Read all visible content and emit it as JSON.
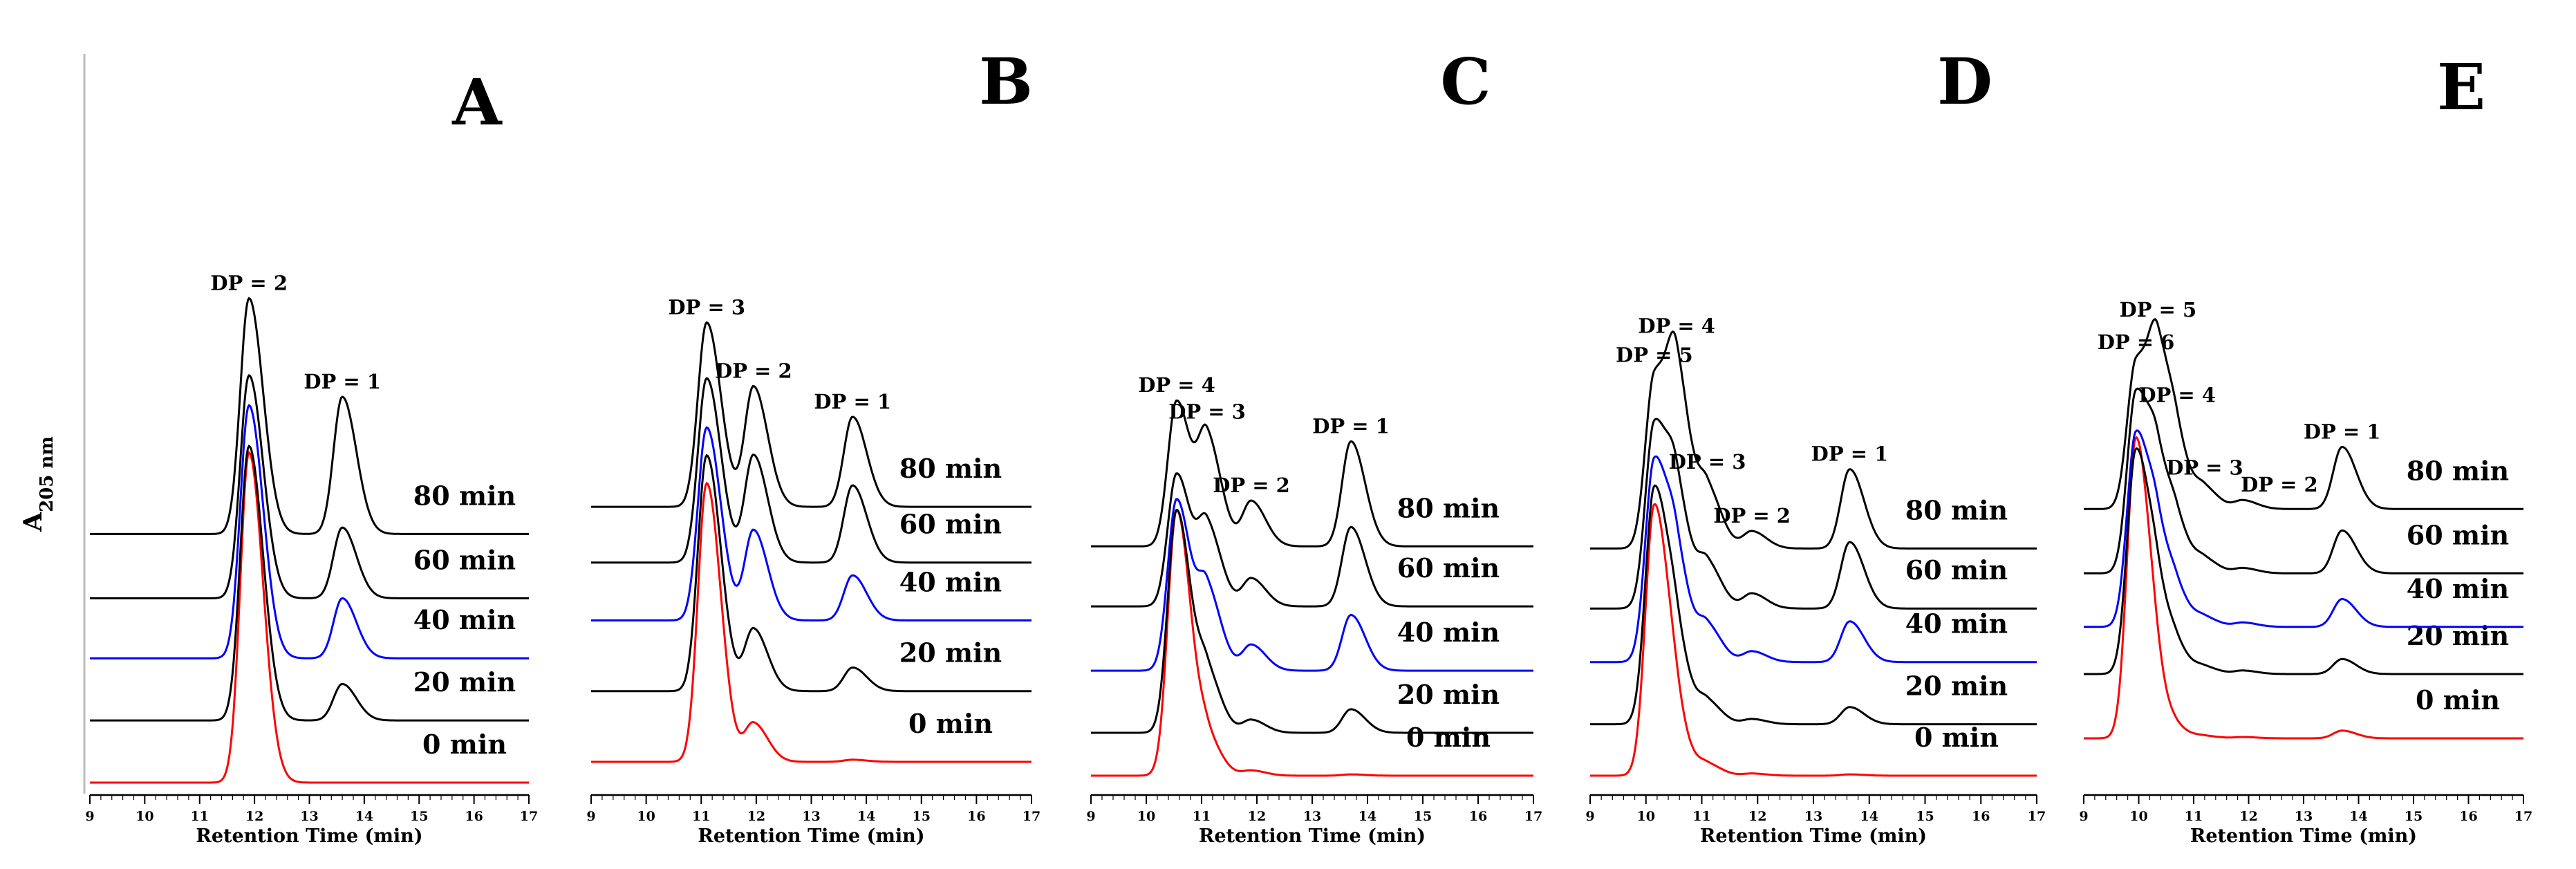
{
  "figure": {
    "ylabel": "A",
    "ylabel_subscript": "205 nm"
  },
  "chart_data": [
    {
      "type": "line",
      "panel": "A",
      "xlabel": "Retention Time (min)",
      "xlim": [
        9,
        17
      ],
      "x_ticks": [
        "9",
        "10",
        "11",
        "12",
        "13",
        "14",
        "15",
        "16",
        "17"
      ],
      "grid": false,
      "series": [
        {
          "name": "0 min",
          "color": "#ff0000",
          "baseline": 0.0,
          "peaks": [
            {
              "dp": 2,
              "t": 11.9,
              "h": 7.7
            },
            {
              "dp": 1,
              "t": 13.6,
              "h": 0.0
            }
          ]
        },
        {
          "name": "20 min",
          "color": "#000000",
          "baseline": 1.45,
          "peaks": [
            {
              "dp": 2,
              "t": 11.9,
              "h": 6.4
            },
            {
              "dp": 1,
              "t": 13.6,
              "h": 0.85
            }
          ]
        },
        {
          "name": "40 min",
          "color": "#0000ff",
          "baseline": 2.9,
          "peaks": [
            {
              "dp": 2,
              "t": 11.9,
              "h": 5.9
            },
            {
              "dp": 1,
              "t": 13.6,
              "h": 1.4
            }
          ]
        },
        {
          "name": "60 min",
          "color": "#000000",
          "baseline": 4.3,
          "peaks": [
            {
              "dp": 2,
              "t": 11.9,
              "h": 5.2
            },
            {
              "dp": 1,
              "t": 13.6,
              "h": 1.65
            }
          ]
        },
        {
          "name": "80 min",
          "color": "#000000",
          "baseline": 5.8,
          "peaks": [
            {
              "dp": 2,
              "t": 11.9,
              "h": 5.5
            },
            {
              "dp": 1,
              "t": 13.6,
              "h": 3.2
            }
          ]
        }
      ],
      "annotations": [
        {
          "text": "DP = 2",
          "series": "80 min",
          "peak": 0
        },
        {
          "text": "DP = 1",
          "series": "80 min",
          "peak": 1
        }
      ]
    },
    {
      "type": "line",
      "panel": "B",
      "xlabel": "Retention Time (min)",
      "xlim": [
        9,
        17
      ],
      "x_ticks": [
        "9",
        "10",
        "11",
        "12",
        "13",
        "14",
        "15",
        "16",
        "17"
      ],
      "grid": false,
      "series": [
        {
          "name": "0 min",
          "color": "#ff0000",
          "baseline": 0.0,
          "peaks": [
            {
              "dp": 3,
              "t": 11.1,
              "h": 6.5
            },
            {
              "dp": 2,
              "t": 11.95,
              "h": 0.9
            },
            {
              "dp": 1,
              "t": 13.75,
              "h": 0.05
            }
          ]
        },
        {
          "name": "20 min",
          "color": "#000000",
          "baseline": 1.65,
          "peaks": [
            {
              "dp": 3,
              "t": 11.1,
              "h": 5.5
            },
            {
              "dp": 2,
              "t": 11.95,
              "h": 1.45
            },
            {
              "dp": 1,
              "t": 13.75,
              "h": 0.55
            }
          ]
        },
        {
          "name": "40 min",
          "color": "#0000ff",
          "baseline": 3.3,
          "peaks": [
            {
              "dp": 3,
              "t": 11.1,
              "h": 4.5
            },
            {
              "dp": 2,
              "t": 11.95,
              "h": 2.1
            },
            {
              "dp": 1,
              "t": 13.75,
              "h": 1.05
            }
          ]
        },
        {
          "name": "60 min",
          "color": "#000000",
          "baseline": 4.65,
          "peaks": [
            {
              "dp": 3,
              "t": 11.1,
              "h": 4.3
            },
            {
              "dp": 2,
              "t": 11.95,
              "h": 2.5
            },
            {
              "dp": 1,
              "t": 13.75,
              "h": 1.8
            }
          ]
        },
        {
          "name": "80 min",
          "color": "#000000",
          "baseline": 5.95,
          "peaks": [
            {
              "dp": 3,
              "t": 11.1,
              "h": 4.3
            },
            {
              "dp": 2,
              "t": 11.95,
              "h": 2.8
            },
            {
              "dp": 1,
              "t": 13.75,
              "h": 2.1
            }
          ]
        }
      ],
      "annotations": [
        {
          "text": "DP = 3",
          "series": "80 min",
          "peak": 0
        },
        {
          "text": "DP = 2",
          "series": "80 min",
          "peak": 1
        },
        {
          "text": "DP = 1",
          "series": "80 min",
          "peak": 2
        }
      ]
    },
    {
      "type": "line",
      "panel": "C",
      "xlabel": "Retention Time (min)",
      "xlim": [
        9,
        17
      ],
      "x_ticks": [
        "9",
        "10",
        "11",
        "12",
        "13",
        "14",
        "15",
        "16",
        "17"
      ],
      "grid": false,
      "series": [
        {
          "name": "0 min",
          "color": "#ff0000",
          "baseline": 0.0,
          "peaks": [
            {
              "dp": 4,
              "t": 10.55,
              "h": 6.2
            },
            {
              "dp": 3,
              "t": 11.1,
              "h": 0.8
            },
            {
              "dp": 2,
              "t": 11.9,
              "h": 0.12
            },
            {
              "dp": 1,
              "t": 13.7,
              "h": 0.03
            }
          ]
        },
        {
          "name": "20 min",
          "color": "#000000",
          "baseline": 1.0,
          "peaks": [
            {
              "dp": 4,
              "t": 10.55,
              "h": 5.2
            },
            {
              "dp": 3,
              "t": 11.1,
              "h": 1.3
            },
            {
              "dp": 2,
              "t": 11.9,
              "h": 0.3
            },
            {
              "dp": 1,
              "t": 13.7,
              "h": 0.55
            }
          ]
        },
        {
          "name": "40 min",
          "color": "#0000ff",
          "baseline": 2.45,
          "peaks": [
            {
              "dp": 4,
              "t": 10.55,
              "h": 4.0
            },
            {
              "dp": 3,
              "t": 11.1,
              "h": 1.8
            },
            {
              "dp": 2,
              "t": 11.9,
              "h": 0.6
            },
            {
              "dp": 1,
              "t": 13.7,
              "h": 1.3
            }
          ]
        },
        {
          "name": "60 min",
          "color": "#000000",
          "baseline": 3.95,
          "peaks": [
            {
              "dp": 4,
              "t": 10.55,
              "h": 3.1
            },
            {
              "dp": 3,
              "t": 11.1,
              "h": 1.8
            },
            {
              "dp": 2,
              "t": 11.9,
              "h": 0.65
            },
            {
              "dp": 1,
              "t": 13.7,
              "h": 1.85
            }
          ]
        },
        {
          "name": "80 min",
          "color": "#000000",
          "baseline": 5.35,
          "peaks": [
            {
              "dp": 4,
              "t": 10.55,
              "h": 3.4
            },
            {
              "dp": 3,
              "t": 11.1,
              "h": 2.45
            },
            {
              "dp": 2,
              "t": 11.9,
              "h": 1.05
            },
            {
              "dp": 1,
              "t": 13.7,
              "h": 2.45
            }
          ]
        }
      ],
      "annotations": [
        {
          "text": "DP = 4",
          "series": "80 min",
          "peak": 0
        },
        {
          "text": "DP = 3",
          "series": "80 min",
          "peak": 1
        },
        {
          "text": "DP = 2",
          "series": "80 min",
          "peak": 2
        },
        {
          "text": "DP = 1",
          "series": "80 min",
          "peak": 3
        }
      ]
    },
    {
      "type": "line",
      "panel": "D",
      "xlabel": "Retention Time (min)",
      "xlim": [
        9,
        17
      ],
      "x_ticks": [
        "9",
        "10",
        "11",
        "12",
        "13",
        "14",
        "15",
        "16",
        "17"
      ],
      "grid": false,
      "series": [
        {
          "name": "0 min",
          "color": "#ff0000",
          "baseline": 0.0,
          "peaks": [
            {
              "dp": 5,
              "t": 10.15,
              "h": 6.3
            },
            {
              "dp": 4,
              "t": 10.55,
              "h": 0.8
            },
            {
              "dp": 3,
              "t": 11.1,
              "h": 0.25
            },
            {
              "dp": 2,
              "t": 11.9,
              "h": 0.05
            },
            {
              "dp": 1,
              "t": 13.65,
              "h": 0.03
            }
          ]
        },
        {
          "name": "20 min",
          "color": "#000000",
          "baseline": 1.2,
          "peaks": [
            {
              "dp": 5,
              "t": 10.15,
              "h": 5.5
            },
            {
              "dp": 4,
              "t": 10.55,
              "h": 1.4
            },
            {
              "dp": 3,
              "t": 11.1,
              "h": 0.5
            },
            {
              "dp": 2,
              "t": 11.9,
              "h": 0.12
            },
            {
              "dp": 1,
              "t": 13.65,
              "h": 0.4
            }
          ]
        },
        {
          "name": "40 min",
          "color": "#0000ff",
          "baseline": 2.65,
          "peaks": [
            {
              "dp": 5,
              "t": 10.15,
              "h": 4.7
            },
            {
              "dp": 4,
              "t": 10.55,
              "h": 1.9
            },
            {
              "dp": 3,
              "t": 11.1,
              "h": 0.8
            },
            {
              "dp": 2,
              "t": 11.9,
              "h": 0.25
            },
            {
              "dp": 1,
              "t": 13.65,
              "h": 0.95
            }
          ]
        },
        {
          "name": "60 min",
          "color": "#000000",
          "baseline": 3.9,
          "peaks": [
            {
              "dp": 5,
              "t": 10.15,
              "h": 4.3
            },
            {
              "dp": 4,
              "t": 10.55,
              "h": 2.2
            },
            {
              "dp": 3,
              "t": 11.1,
              "h": 1.0
            },
            {
              "dp": 2,
              "t": 11.9,
              "h": 0.35
            },
            {
              "dp": 1,
              "t": 13.65,
              "h": 1.55
            }
          ]
        },
        {
          "name": "80 min",
          "color": "#000000",
          "baseline": 5.3,
          "peaks": [
            {
              "dp": 5,
              "t": 10.15,
              "h": 4.0
            },
            {
              "dp": 4,
              "t": 10.55,
              "h": 3.65
            },
            {
              "dp": 3,
              "t": 11.1,
              "h": 1.3
            },
            {
              "dp": 2,
              "t": 11.9,
              "h": 0.4
            },
            {
              "dp": 1,
              "t": 13.65,
              "h": 1.85
            }
          ]
        }
      ],
      "annotations": [
        {
          "text": "DP = 5",
          "series": "80 min",
          "peak": 0
        },
        {
          "text": "DP = 4",
          "series": "80 min",
          "peak": 1
        },
        {
          "text": "DP = 3",
          "series": "80 min",
          "peak": 2
        },
        {
          "text": "DP = 2",
          "series": "80 min",
          "peak": 3
        },
        {
          "text": "DP = 1",
          "series": "80 min",
          "peak": 4
        }
      ]
    },
    {
      "type": "line",
      "panel": "E",
      "xlabel": "Retention Time (min)",
      "xlim": [
        9,
        17
      ],
      "x_ticks": [
        "9",
        "10",
        "11",
        "12",
        "13",
        "14",
        "15",
        "16",
        "17"
      ],
      "grid": false,
      "series": [
        {
          "name": "0 min",
          "color": "#ff0000",
          "baseline": 0.0,
          "peaks": [
            {
              "dp": 6,
              "t": 9.95,
              "h": 7.0
            },
            {
              "dp": 5,
              "t": 10.35,
              "h": 0.5
            },
            {
              "dp": 4,
              "t": 10.7,
              "h": 0.15
            },
            {
              "dp": 3,
              "t": 11.2,
              "h": 0.05
            },
            {
              "dp": 2,
              "t": 11.9,
              "h": 0.03
            },
            {
              "dp": 1,
              "t": 13.7,
              "h": 0.18
            }
          ]
        },
        {
          "name": "20 min",
          "color": "#000000",
          "baseline": 1.5,
          "peaks": [
            {
              "dp": 6,
              "t": 9.95,
              "h": 5.2
            },
            {
              "dp": 5,
              "t": 10.35,
              "h": 1.3
            },
            {
              "dp": 4,
              "t": 10.7,
              "h": 0.4
            },
            {
              "dp": 3,
              "t": 11.2,
              "h": 0.15
            },
            {
              "dp": 2,
              "t": 11.9,
              "h": 0.08
            },
            {
              "dp": 1,
              "t": 13.7,
              "h": 0.35
            }
          ]
        },
        {
          "name": "40 min",
          "color": "#0000ff",
          "baseline": 2.6,
          "peaks": [
            {
              "dp": 6,
              "t": 9.95,
              "h": 4.5
            },
            {
              "dp": 5,
              "t": 10.35,
              "h": 1.6
            },
            {
              "dp": 4,
              "t": 10.7,
              "h": 0.55
            },
            {
              "dp": 3,
              "t": 11.2,
              "h": 0.2
            },
            {
              "dp": 2,
              "t": 11.9,
              "h": 0.1
            },
            {
              "dp": 1,
              "t": 13.7,
              "h": 0.65
            }
          ]
        },
        {
          "name": "60 min",
          "color": "#000000",
          "baseline": 3.85,
          "peaks": [
            {
              "dp": 6,
              "t": 9.95,
              "h": 4.2
            },
            {
              "dp": 5,
              "t": 10.35,
              "h": 2.0
            },
            {
              "dp": 4,
              "t": 10.7,
              "h": 0.8
            },
            {
              "dp": 3,
              "t": 11.2,
              "h": 0.3
            },
            {
              "dp": 2,
              "t": 11.9,
              "h": 0.12
            },
            {
              "dp": 1,
              "t": 13.7,
              "h": 1.0
            }
          ]
        },
        {
          "name": "80 min",
          "color": "#000000",
          "baseline": 5.35,
          "peaks": [
            {
              "dp": 6,
              "t": 9.95,
              "h": 3.4
            },
            {
              "dp": 5,
              "t": 10.35,
              "h": 3.2
            },
            {
              "dp": 4,
              "t": 10.7,
              "h": 1.0
            },
            {
              "dp": 3,
              "t": 11.2,
              "h": 0.45
            },
            {
              "dp": 2,
              "t": 11.9,
              "h": 0.2
            },
            {
              "dp": 1,
              "t": 13.7,
              "h": 1.45
            }
          ]
        }
      ],
      "annotations": [
        {
          "text": "DP = 6",
          "series": "80 min",
          "peak": 0
        },
        {
          "text": "DP = 5",
          "series": "80 min",
          "peak": 1
        },
        {
          "text": "DP = 4",
          "series": "80 min",
          "peak": 2
        },
        {
          "text": "DP = 3",
          "series": "80 min",
          "peak": 3
        },
        {
          "text": "DP = 2",
          "series": "80 min",
          "peak": 4
        },
        {
          "text": "DP = 1",
          "series": "80 min",
          "peak": 5
        }
      ]
    }
  ]
}
